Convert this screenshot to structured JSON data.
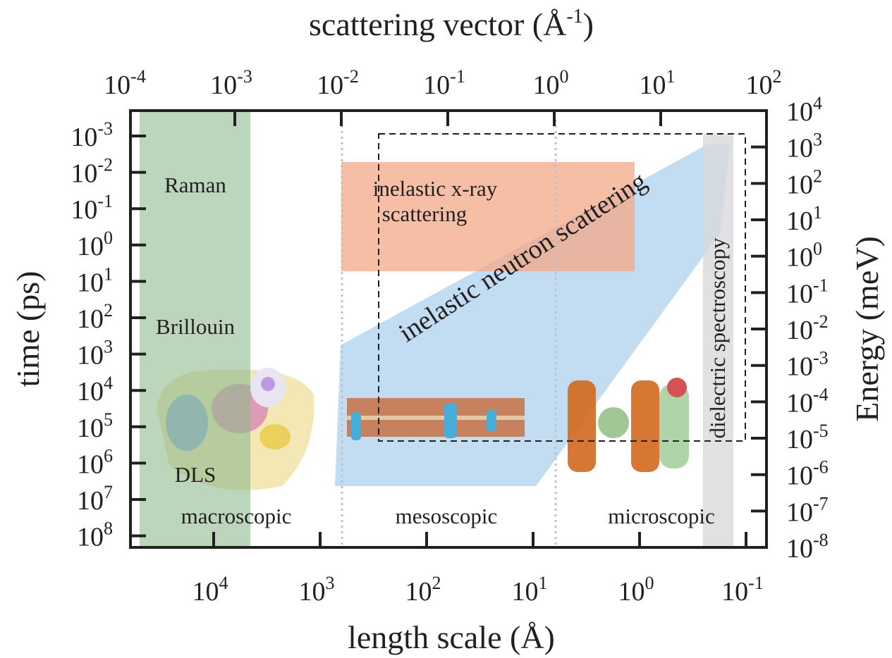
{
  "title_top": {
    "text": "scattering vector (Å",
    "sup": "-1",
    "close": ")"
  },
  "title_bottom": "length scale (Å)",
  "title_left": "time (ps)",
  "title_right": "Energy (meV)",
  "top_ticks": [
    {
      "base": "10",
      "exp": "-4"
    },
    {
      "base": "10",
      "exp": "-3"
    },
    {
      "base": "10",
      "exp": "-2"
    },
    {
      "base": "10",
      "exp": "-1"
    },
    {
      "base": "10",
      "exp": "0"
    },
    {
      "base": "10",
      "exp": "1"
    },
    {
      "base": "10",
      "exp": "2"
    }
  ],
  "bottom_ticks": [
    {
      "base": "10",
      "exp": "4"
    },
    {
      "base": "10",
      "exp": "3"
    },
    {
      "base": "10",
      "exp": "2"
    },
    {
      "base": "10",
      "exp": "1"
    },
    {
      "base": "10",
      "exp": "0"
    },
    {
      "base": "10",
      "exp": "-1"
    }
  ],
  "left_ticks": [
    {
      "base": "10",
      "exp": "-3"
    },
    {
      "base": "10",
      "exp": "-2"
    },
    {
      "base": "10",
      "exp": "-1"
    },
    {
      "base": "10",
      "exp": "0"
    },
    {
      "base": "10",
      "exp": "1"
    },
    {
      "base": "10",
      "exp": "2"
    },
    {
      "base": "10",
      "exp": "3"
    },
    {
      "base": "10",
      "exp": "4"
    },
    {
      "base": "10",
      "exp": "5"
    },
    {
      "base": "10",
      "exp": "6"
    },
    {
      "base": "10",
      "exp": "7"
    },
    {
      "base": "10",
      "exp": "8"
    }
  ],
  "right_ticks": [
    {
      "base": "10",
      "exp": "4"
    },
    {
      "base": "10",
      "exp": "3"
    },
    {
      "base": "10",
      "exp": "2"
    },
    {
      "base": "10",
      "exp": "1"
    },
    {
      "base": "10",
      "exp": "0"
    },
    {
      "base": "10",
      "exp": "-1"
    },
    {
      "base": "10",
      "exp": "-2"
    },
    {
      "base": "10",
      "exp": "-3"
    },
    {
      "base": "10",
      "exp": "-4"
    },
    {
      "base": "10",
      "exp": "-5"
    },
    {
      "base": "10",
      "exp": "-6"
    },
    {
      "base": "10",
      "exp": "-7"
    },
    {
      "base": "10",
      "exp": "-8"
    }
  ],
  "regions": {
    "raman": "Raman",
    "brillouin": "Brillouin",
    "dls": "DLS",
    "macroscopic": "macroscopic",
    "mesoscopic": "mesoscopic",
    "microscopic": "microscopic",
    "ixs_line1": "inelastic x-ray",
    "ixs_line2": "scattering",
    "ins": "inelastic neutron scattering",
    "dielectric": "dielectric spectroscopy"
  }
}
